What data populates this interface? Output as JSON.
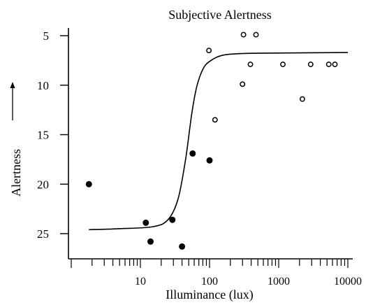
{
  "chart_data": {
    "type": "scatter",
    "title": "Subjective Alertness",
    "xlabel": "Illuminance (lux)",
    "ylabel": "Alertness",
    "x_scale": "log",
    "xlim": [
      1.3,
      12000
    ],
    "ylim": [
      27.5,
      3.0
    ],
    "y_inverted": true,
    "x_tick_labels": [
      "10",
      "100",
      "1000",
      "10000"
    ],
    "y_tick_labels": [
      "5",
      "10",
      "15",
      "20",
      "25"
    ],
    "grid": false,
    "legend": "none",
    "series": [
      {
        "marker": "filled-circle",
        "points": [
          {
            "x": 1.8,
            "y": 20.0
          },
          {
            "x": 12,
            "y": 23.9
          },
          {
            "x": 14,
            "y": 25.8
          },
          {
            "x": 29,
            "y": 23.6
          },
          {
            "x": 40,
            "y": 26.3
          },
          {
            "x": 57,
            "y": 16.9
          },
          {
            "x": 100,
            "y": 17.6
          }
        ]
      },
      {
        "marker": "open-circle",
        "points": [
          {
            "x": 98,
            "y": 6.5
          },
          {
            "x": 120,
            "y": 13.5
          },
          {
            "x": 300,
            "y": 9.9
          },
          {
            "x": 310,
            "y": 4.9
          },
          {
            "x": 390,
            "y": 7.9
          },
          {
            "x": 470,
            "y": 4.9
          },
          {
            "x": 1150,
            "y": 7.9
          },
          {
            "x": 2200,
            "y": 11.4
          },
          {
            "x": 2900,
            "y": 7.9
          },
          {
            "x": 5300,
            "y": 7.9
          },
          {
            "x": 6500,
            "y": 7.9
          }
        ]
      },
      {
        "type": "line",
        "style": "sigmoid-fit",
        "points": [
          {
            "x": 1.8,
            "y": 24.6
          },
          {
            "x": 5,
            "y": 24.5
          },
          {
            "x": 15,
            "y": 24.3
          },
          {
            "x": 25,
            "y": 23.6
          },
          {
            "x": 35,
            "y": 21.5
          },
          {
            "x": 45,
            "y": 17.5
          },
          {
            "x": 55,
            "y": 13.0
          },
          {
            "x": 65,
            "y": 10.2
          },
          {
            "x": 80,
            "y": 8.4
          },
          {
            "x": 100,
            "y": 7.6
          },
          {
            "x": 150,
            "y": 7.0
          },
          {
            "x": 300,
            "y": 6.8
          },
          {
            "x": 1000,
            "y": 6.75
          },
          {
            "x": 10000,
            "y": 6.7
          }
        ]
      }
    ],
    "colors": {
      "ink": "#000000",
      "background": "#ffffff"
    }
  }
}
